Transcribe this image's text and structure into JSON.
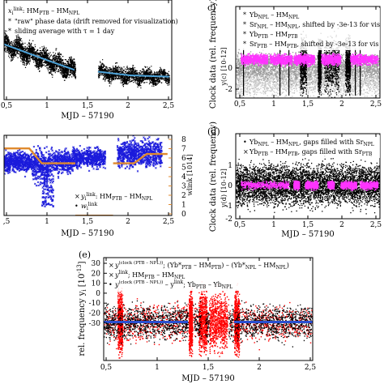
{
  "panels": [
    {
      "id": "top-left",
      "legend": [
        {
          "text": "x_i^link: HM_PTB – HM_NPL"
        },
        {
          "text": "\"raw\" phase data (drift removed for visualization)",
          "color": "#000000"
        },
        {
          "text": "sliding average with τ = 1 day",
          "color": "#4da3d9"
        }
      ],
      "xticks": [
        "0,5",
        "1",
        "1,5",
        "2",
        "2,5"
      ],
      "xlabel": "MJD – 57190"
    },
    {
      "id": "c",
      "label": "c)",
      "legend": [
        {
          "text": "Yb_NPL – HM_NPL",
          "color": "#000000"
        },
        {
          "text": "Sr_NPL – HM_NPL, shifted by -3e-13 for vis",
          "color": "#999999"
        },
        {
          "text": "Yb_PTB – HM_PTB",
          "color": "#ff33ff"
        },
        {
          "text": "Sr_PTB – HM_PTB, shifted by -3e-13 for vis",
          "color": "#bbbbbb"
        }
      ],
      "ylabel": "Clock data (rel. frequency)",
      "yunit": "y_i^(c) [10^-12]",
      "yticks": [
        "0",
        "-2"
      ],
      "xticks": [
        "0,5",
        "1",
        "1,5",
        "2",
        "2,5"
      ],
      "xlabel": "MJD – 57190"
    },
    {
      "id": "mid-left",
      "legend": [
        {
          "text": "y_i^link: HM_PTB – HM_NPL",
          "color": "#1a1adb"
        },
        {
          "text": "w_i^link",
          "color": "#e08a2e"
        }
      ],
      "yright_ticks": [
        "8",
        "7",
        "6",
        "5",
        "4",
        "3",
        "2",
        "1",
        "0"
      ],
      "yright_label": "w_i^link [10^14]",
      "xticks": [
        ",5",
        "1",
        "1,5",
        "2",
        "2,5"
      ],
      "xlabel": "MJD – 57190"
    },
    {
      "id": "d",
      "label": "(d)",
      "legend": [
        {
          "text": "Yb_NPL – HM_NPL, gaps filled with Sr_NPL",
          "color": "#000000"
        },
        {
          "text": "Yb_PTB – HM_PTB, gaps filled with Sr_PTB",
          "color": "#ff33ff"
        }
      ],
      "ylabel": "Clock data (rel. frequency)",
      "yunit": "y_i^(d) [10^-12]",
      "yticks": [
        "1",
        "0",
        "-1",
        "-2"
      ],
      "xticks": [
        "0,5",
        "1",
        "1,5",
        "2",
        "2,5"
      ],
      "xlabel": "MJD – 57190"
    },
    {
      "id": "e",
      "label": "(e)",
      "legend": [
        {
          "text": "y_i^(clock (PTB – NPL)): (Yb*_PTB – HM_PTB) – (Yb*_NPL – HM_NPL)",
          "color": "#ff0000"
        },
        {
          "text": "y_i^link: HM_PTB – HM_NPL",
          "color": "#1a1adb"
        },
        {
          "text": "y_i^(clock (PTB – NPL)) – y_i^link: Yb_PTB – Yb_NPL",
          "color": "#000000"
        }
      ],
      "ylabel": "rel. frequency y_i [10^-13]",
      "yticks": [
        "30",
        "20",
        "10",
        "0",
        "-10",
        "-20",
        "-30"
      ],
      "xticks": [
        "0,5",
        "1",
        "1,5",
        "2",
        "2,5"
      ],
      "xlabel": "MJD – 57190"
    }
  ],
  "text": {
    "tl_leg1_a": "x",
    "tl_leg1_b": "i",
    "tl_leg1_c": "link",
    "tl_leg1_d": ": HM",
    "tl_leg1_e": "PTB",
    "tl_leg1_f": " – HM",
    "tl_leg1_g": "NPL",
    "tl_leg2": "\"raw\" phase data (drift removed for visualization)",
    "tl_leg3": "sliding average with τ = 1 day",
    "tl_xlabel": "MJD – 57190",
    "c_label": "c)",
    "c_leg1": "Yb",
    "c_leg1_sub": "NPL",
    "c_leg1_rest": " – HM",
    "c_leg1_sub2": "NPL",
    "c_leg2": "Sr",
    "c_leg2_sub": "NPL",
    "c_leg2_rest": " – HM",
    "c_leg2_sub2": "NPL",
    "c_leg2_tail": ", shifted by -3e-13 for vis",
    "c_leg3": "Yb",
    "c_leg3_sub": "PTB",
    "c_leg3_rest": " – HM",
    "c_leg3_sub2": "PTB",
    "c_leg4": "Sr",
    "c_leg4_sub": "PTB",
    "c_leg4_rest": " – HM",
    "c_leg4_sub2": "PTB",
    "c_leg4_tail": ", shifted by -3e-13 for vis",
    "c_ylabel": "Clock data (rel. frequency)",
    "c_yunit": "y(c) [10-12]",
    "ml_leg1": "y",
    "ml_leg1_link": "link",
    "ml_leg1_i": "i",
    "ml_leg1_rest": ": HM",
    "ml_leg1_sub": "PTB",
    "ml_leg1_rest2": " – HM",
    "ml_leg1_sub2": "NPL",
    "ml_leg2": "w",
    "ml_leg2_i": "i",
    "ml_leg2_link": "link",
    "ml_ylabel_r": "wlink [1014]",
    "ml_xlabel": "MJD – 57190",
    "d_label": "(d)",
    "d_leg1": "Yb",
    "d_leg1_sub": "NPL",
    "d_leg1_rest": " – HM",
    "d_leg1_sub2": "NPL",
    "d_leg1_tail": ", gaps filled with Sr",
    "d_leg1_sub3": "NPL",
    "d_leg2": "Yb",
    "d_leg2_sub": "PTB",
    "d_leg2_rest": " – HM",
    "d_leg2_sub2": "PTB",
    "d_leg2_tail": ", gaps filled with Sr",
    "d_leg2_sub3": "PTB",
    "d_ylabel": "Clock data (rel. frequency)",
    "d_yunit": "y(d) [10-12]",
    "d_xlabel": "MJD – 57190",
    "e_label": "(e)",
    "e_leg1": "y",
    "e_leg1_sup": "(clock (PTB – NPL))",
    "e_leg1_rest": "; (Yb*",
    "e_leg1_s1": "PTB",
    "e_leg1_r2": " – HM",
    "e_leg1_s2": "PTB",
    "e_leg1_r3": ") – (Yb*",
    "e_leg1_s3": "NPL",
    "e_leg1_r4": " – HM",
    "e_leg1_s4": "NPL",
    "e_leg1_r5": ")",
    "e_leg2": "y",
    "e_leg2_sup": "link",
    "e_leg2_rest": "; HM",
    "e_leg2_s1": "PTB",
    "e_leg2_r2": " – HM",
    "e_leg2_s2": "NPL",
    "e_leg3": "y",
    "e_leg3_sup": "(clock (PTB – NPL))",
    "e_leg3_rest": " – y",
    "e_leg3_sup2": "link",
    "e_leg3_r2": "; Yb",
    "e_leg3_s1": "PTB",
    "e_leg3_r3": " – Yb",
    "e_leg3_s2": "NPL",
    "e_ylabel": "rel. frequency y",
    "e_ylabel_i": "i",
    "e_ylabel_unit": " [10",
    "e_ylabel_exp": "-13",
    "e_ylabel_end": "]",
    "e_xlabel": "MJD – 57190"
  },
  "ticks": {
    "tl_x": [
      "0,5",
      "1",
      "1,5",
      "2",
      "2,5"
    ],
    "c_x": [
      "0,5",
      "1",
      "1,5",
      "2",
      "2,5"
    ],
    "c_y": [
      "0",
      "-2"
    ],
    "ml_x": [
      ",5",
      "1",
      "1,5",
      "2",
      "2,5"
    ],
    "ml_yr": [
      "8",
      "7",
      "6",
      "5",
      "4",
      "3",
      "2",
      "1",
      "0"
    ],
    "d_x": [
      "0,5",
      "1",
      "1,5",
      "2",
      "2,5"
    ],
    "d_y": [
      "1",
      "0",
      "-1",
      "-2"
    ],
    "e_x": [
      "0,5",
      "1",
      "1,5",
      "2",
      "2,5"
    ],
    "e_y": [
      "30",
      "20",
      "10",
      "0",
      "-10",
      "-20",
      "-30"
    ]
  },
  "colors": {
    "black": "#000000",
    "blue": "#1a1adb",
    "lightblue": "#4da3d9",
    "magenta": "#ff33ff",
    "gray": "#999999",
    "lightgray": "#c8c8c8",
    "orange": "#e08a2e",
    "red": "#ff0000",
    "ebar": "#2a4fd0"
  },
  "chart_data": [
    {
      "type": "scatter",
      "panel": "top-left",
      "xlim": [
        0.5,
        2.5
      ],
      "series": [
        {
          "name": "\"raw\" phase data (drift removed for visualization)",
          "x": [
            0.5,
            1.0,
            1.35,
            1.6,
            2.0,
            2.45
          ],
          "y": [
            -0.6,
            -1.8,
            -2.6,
            -2.7,
            -3.0,
            -3.1
          ]
        },
        {
          "name": "sliding average with τ = 1 day",
          "x": [
            0.5,
            1.0,
            1.35,
            1.6,
            2.0,
            2.45
          ],
          "y": [
            -0.6,
            -1.8,
            -2.6,
            -2.7,
            -3.0,
            -3.1
          ]
        }
      ]
    },
    {
      "type": "scatter",
      "panel": "c",
      "xlim": [
        0.5,
        2.5
      ],
      "ylim": [
        -3.5,
        3.5
      ],
      "series": [
        {
          "name": "Yb_NPL – HM_NPL",
          "x": [
            1.48,
            1.52,
            1.55,
            1.6
          ],
          "y": [
            0,
            0,
            0,
            0
          ]
        },
        {
          "name": "Sr_NPL – HM_NPL, shifted by -3e-13 for vis",
          "x": [
            0.5,
            2.5
          ],
          "y": [
            -0.3,
            -0.3
          ]
        },
        {
          "name": "Yb_PTB – HM_PTB",
          "x": [
            0.5,
            2.5
          ],
          "y": [
            0.8,
            0.8
          ]
        },
        {
          "name": "Sr_PTB – HM_PTB, shifted by -3e-13 for vis",
          "x": [
            0.5,
            2.5
          ],
          "y": [
            -0.3,
            -0.3
          ]
        }
      ]
    },
    {
      "type": "scatter",
      "panel": "mid-left",
      "xlim": [
        0.5,
        2.5
      ],
      "series": [
        {
          "name": "y_i^link: HM_PTB – HM_NPL",
          "x": [
            0.5,
            1.35,
            1.8,
            2.45
          ],
          "y": [
            0,
            0,
            0,
            0
          ]
        },
        {
          "name": "w_i^link",
          "x": [
            0.5,
            0.8,
            0.95,
            1.35,
            1.8,
            2.05,
            2.2,
            2.45
          ],
          "y": [
            7.2,
            7.2,
            5.6,
            5.6,
            5.6,
            5.6,
            6.6,
            6.6
          ]
        }
      ]
    },
    {
      "type": "scatter",
      "panel": "d",
      "xlim": [
        0.5,
        2.5
      ],
      "ylim": [
        -2.5,
        1.5
      ],
      "series": [
        {
          "name": "Yb_NPL – HM_NPL, gaps filled with Sr_NPL",
          "x": [
            0.5,
            2.5
          ],
          "y": [
            0,
            0
          ]
        },
        {
          "name": "Yb_PTB – HM_PTB, gaps filled with Sr_PTB",
          "x": [
            0.5,
            2.5
          ],
          "y": [
            0,
            0
          ]
        }
      ]
    },
    {
      "type": "scatter",
      "panel": "e",
      "xlim": [
        0.5,
        2.5
      ],
      "ylim": [
        -35,
        35
      ],
      "series": [
        {
          "name": "y_i^(clock (PTB – NPL)): (Yb*_PTB – HM_PTB) – (Yb*_NPL – HM_NPL)",
          "x": [
            0.5,
            2.5
          ],
          "y": [
            0,
            0
          ]
        },
        {
          "name": "y_i^link: HM_PTB – HM_NPL",
          "x": [
            0.5,
            2.5
          ],
          "y": [
            0,
            0
          ]
        },
        {
          "name": "y_i^(clock (PTB – NPL)) – y_i^link: Yb_PTB – Yb_NPL",
          "x": [
            0.5,
            2.5
          ],
          "y": [
            0,
            0
          ]
        }
      ]
    }
  ]
}
